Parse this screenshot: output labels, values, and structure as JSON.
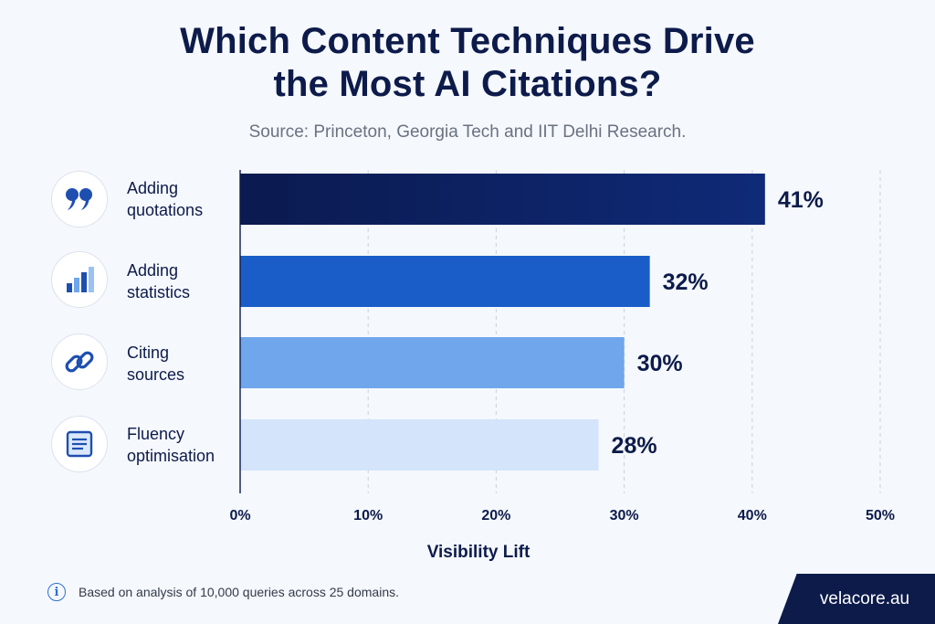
{
  "header": {
    "title_line1": "Which Content Techniques Drive",
    "title_line2": "the Most AI Citations?",
    "subtitle": "Source: Princeton, Georgia Tech and IIT Delhi Research."
  },
  "rows": [
    {
      "label_line1": "Adding",
      "label_line2": "quotations",
      "icon": "quote-icon"
    },
    {
      "label_line1": "Adding",
      "label_line2": "statistics",
      "icon": "bar-chart-icon"
    },
    {
      "label_line1": "Citing",
      "label_line2": "sources",
      "icon": "link-icon"
    },
    {
      "label_line1": "Fluency",
      "label_line2": "optimisation",
      "icon": "document-icon"
    }
  ],
  "chart_data": {
    "type": "bar",
    "orientation": "horizontal",
    "categories": [
      "Adding quotations",
      "Adding statistics",
      "Citing sources",
      "Fluency optimisation"
    ],
    "values": [
      41,
      32,
      30,
      28
    ],
    "value_labels": [
      "41%",
      "32%",
      "30%",
      "28%"
    ],
    "xlabel": "Visibility Lift",
    "xlim": [
      0,
      50
    ],
    "xticks": [
      0,
      10,
      20,
      30,
      40,
      50
    ],
    "xtick_labels": [
      "0%",
      "10%",
      "20%",
      "30%",
      "40%",
      "50%"
    ],
    "grid": "vertical dashed",
    "bar_colors": [
      "#0d1b55",
      "#1a5dc8",
      "#6fa6ec",
      "#d3e4fb"
    ]
  },
  "footer": {
    "note": "Based on analysis of 10,000 queries across 25 domains.",
    "brand": "velacore.au",
    "info_icon": "info-icon"
  }
}
